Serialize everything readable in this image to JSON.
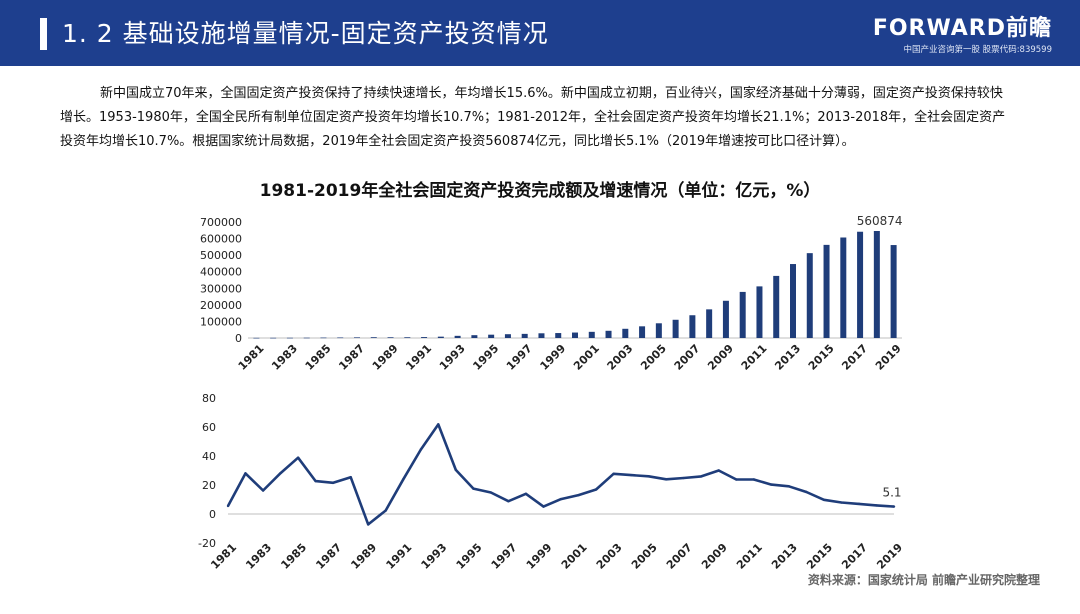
{
  "header": {
    "title": "1. 2 基础设施增量情况-固定资产投资情况",
    "brand": "FORWARD前瞻",
    "subtitle": "中国产业咨询第一股 股票代码:839599"
  },
  "intro": "新中国成立70年来，全国固定资产投资保持了持续快速增长，年均增长15.6%。新中国成立初期，百业待兴，国家经济基础十分薄弱，固定资产投资保持较快增长。1953-1980年，全国全民所有制单位固定资产投资年均增长10.7%；1981-2012年，全社会固定资产投资年均增长21.1%；2013-2018年，全社会固定资产投资年均增长10.7%。根据国家统计局数据，2019年全社会固定资产投资560874亿元，同比增长5.1%（2019年增速按可比口径计算）。",
  "source": "资料来源：国家统计局 前瞻产业研究院整理",
  "colors": {
    "header": "#1e3f8e",
    "series": "#1f3d7a"
  },
  "chart_data": {
    "title": "1981-2019年全社会固定资产投资完成额及增速情况（单位：亿元，%）",
    "charts": [
      {
        "type": "bar",
        "name": "investment",
        "ylim": [
          0,
          700000
        ],
        "yticks": [
          0,
          100000,
          200000,
          300000,
          400000,
          500000,
          600000,
          700000
        ],
        "x_tick_labels": [
          "1981",
          "1983",
          "1985",
          "1987",
          "1989",
          "1991",
          "1993",
          "1995",
          "1997",
          "1999",
          "2001",
          "2003",
          "2005",
          "2007",
          "2009",
          "2011",
          "2013",
          "2015",
          "2017",
          "2019"
        ],
        "categories": [
          "1981",
          "1982",
          "1983",
          "1984",
          "1985",
          "1986",
          "1987",
          "1988",
          "1989",
          "1990",
          "1991",
          "1992",
          "1993",
          "1994",
          "1995",
          "1996",
          "1997",
          "1998",
          "1999",
          "2000",
          "2001",
          "2002",
          "2003",
          "2004",
          "2005",
          "2006",
          "2007",
          "2008",
          "2009",
          "2010",
          "2011",
          "2012",
          "2013",
          "2014",
          "2015",
          "2016",
          "2017",
          "2018",
          "2019"
        ],
        "values": [
          961,
          1230,
          1430,
          1833,
          2543,
          3121,
          3792,
          4754,
          4410,
          4517,
          5595,
          8080,
          13072,
          17042,
          20019,
          22914,
          24941,
          28406,
          29855,
          32918,
          37214,
          43500,
          55567,
          70477,
          88774,
          109998,
          137324,
          172828,
          224599,
          278122,
          311485,
          374695,
          446294,
          512021,
          561999,
          606466,
          641238,
          645675,
          560874
        ],
        "annotation": {
          "category": "2019",
          "text": "560874"
        }
      },
      {
        "type": "line",
        "name": "growth",
        "ylim": [
          -20,
          80
        ],
        "yticks": [
          -20,
          0,
          20,
          40,
          60,
          80
        ],
        "x_tick_labels": [
          "1981",
          "1983",
          "1985",
          "1987",
          "1989",
          "1991",
          "1993",
          "1995",
          "1997",
          "1999",
          "2001",
          "2003",
          "2005",
          "2007",
          "2009",
          "2011",
          "2013",
          "2015",
          "2017",
          "2019"
        ],
        "categories": [
          "1981",
          "1982",
          "1983",
          "1984",
          "1985",
          "1986",
          "1987",
          "1988",
          "1989",
          "1990",
          "1991",
          "1992",
          "1993",
          "1994",
          "1995",
          "1996",
          "1997",
          "1998",
          "1999",
          "2000",
          "2001",
          "2002",
          "2003",
          "2004",
          "2005",
          "2006",
          "2007",
          "2008",
          "2009",
          "2010",
          "2011",
          "2012",
          "2013",
          "2014",
          "2015",
          "2016",
          "2017",
          "2018",
          "2019"
        ],
        "values": [
          5.5,
          28.0,
          16.2,
          28.2,
          38.8,
          22.7,
          21.5,
          25.4,
          -7.2,
          2.4,
          23.9,
          44.4,
          61.8,
          30.4,
          17.5,
          14.8,
          8.8,
          13.9,
          5.1,
          10.3,
          13.0,
          16.9,
          27.7,
          26.8,
          26.0,
          23.9,
          24.8,
          25.9,
          30.0,
          23.8,
          23.8,
          20.3,
          19.1,
          15.2,
          9.8,
          7.9,
          7.0,
          5.9,
          5.1
        ],
        "annotation": {
          "category": "2019",
          "text": "5.1"
        }
      }
    ]
  }
}
